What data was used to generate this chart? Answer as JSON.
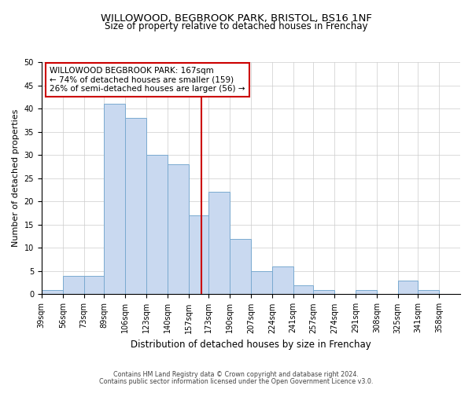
{
  "title": "WILLOWOOD, BEGBROOK PARK, BRISTOL, BS16 1NF",
  "subtitle": "Size of property relative to detached houses in Frenchay",
  "xlabel": "Distribution of detached houses by size in Frenchay",
  "ylabel": "Number of detached properties",
  "bins": [
    39,
    56,
    73,
    89,
    106,
    123,
    140,
    157,
    173,
    190,
    207,
    224,
    241,
    257,
    274,
    291,
    308,
    325,
    341,
    358,
    375
  ],
  "counts": [
    1,
    4,
    4,
    41,
    38,
    30,
    28,
    17,
    22,
    12,
    5,
    6,
    2,
    1,
    0,
    1,
    0,
    3,
    1,
    0
  ],
  "bar_color": "#c9d9f0",
  "bar_edge_color": "#7aaad0",
  "vline_x": 167,
  "vline_color": "#cc0000",
  "ylim": [
    0,
    50
  ],
  "yticks": [
    0,
    5,
    10,
    15,
    20,
    25,
    30,
    35,
    40,
    45,
    50
  ],
  "annotation_title": "WILLOWOOD BEGBROOK PARK: 167sqm",
  "annotation_line1": "← 74% of detached houses are smaller (159)",
  "annotation_line2": "26% of semi-detached houses are larger (56) →",
  "annotation_box_color": "#cc0000",
  "footnote1": "Contains HM Land Registry data © Crown copyright and database right 2024.",
  "footnote2": "Contains public sector information licensed under the Open Government Licence v3.0.",
  "background_color": "#ffffff",
  "grid_color": "#cccccc",
  "title_fontsize": 9.5,
  "subtitle_fontsize": 8.5,
  "xlabel_fontsize": 8.5,
  "ylabel_fontsize": 8,
  "tick_fontsize": 7,
  "annotation_fontsize": 7.5,
  "footnote_fontsize": 5.8
}
